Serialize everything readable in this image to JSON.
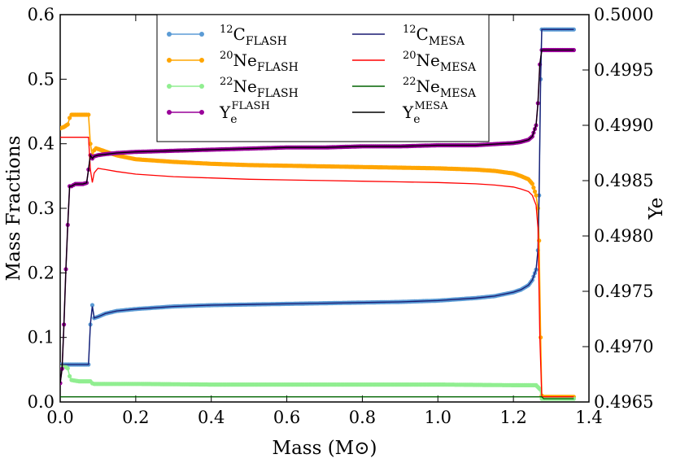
{
  "chart_data": {
    "type": "line",
    "xlabel": "Mass (M⊙)",
    "ylabel": "Mass Fractions",
    "y2label": "Ye",
    "xlim": [
      0.0,
      1.4
    ],
    "ylim": [
      0.0,
      0.6
    ],
    "y2lim": [
      0.4965,
      0.5
    ],
    "x_ticks": [
      0.0,
      0.2,
      0.4,
      0.6,
      0.8,
      1.0,
      1.2,
      1.4
    ],
    "x_tick_labels": [
      "0.0",
      "0.2",
      "0.4",
      "0.6",
      "0.8",
      "1.0",
      "1.2",
      "1.4"
    ],
    "y_ticks": [
      0.0,
      0.1,
      0.2,
      0.3,
      0.4,
      0.5,
      0.6
    ],
    "y_tick_labels": [
      "0.0",
      "0.1",
      "0.2",
      "0.3",
      "0.4",
      "0.5",
      "0.6"
    ],
    "y2_ticks": [
      0.4965,
      0.497,
      0.4975,
      0.498,
      0.4985,
      0.499,
      0.4995,
      0.5
    ],
    "y2_tick_labels": [
      "0.4965",
      "0.4970",
      "0.4975",
      "0.4980",
      "0.4985",
      "0.4990",
      "0.4995",
      "0.5000"
    ],
    "legend_position": "top-center",
    "series": [
      {
        "key": "c12_flash",
        "name": "12C FLASH",
        "legend": {
          "sup": "12",
          "base": "C",
          "sub": "FLASH"
        },
        "color": "#5b9bd5",
        "style": "markers-line",
        "axis": "left",
        "x": [
          0.0,
          0.01,
          0.02,
          0.03,
          0.04,
          0.05,
          0.06,
          0.07,
          0.075,
          0.08,
          0.085,
          0.09,
          0.1,
          0.12,
          0.15,
          0.2,
          0.3,
          0.4,
          0.5,
          0.6,
          0.7,
          0.8,
          0.9,
          1.0,
          1.1,
          1.15,
          1.2,
          1.22,
          1.24,
          1.25,
          1.26,
          1.265,
          1.268,
          1.272,
          1.275,
          1.28,
          1.3,
          1.33,
          1.36
        ],
        "y": [
          0.058,
          0.058,
          0.058,
          0.058,
          0.058,
          0.058,
          0.058,
          0.058,
          0.058,
          0.12,
          0.15,
          0.13,
          0.132,
          0.137,
          0.141,
          0.144,
          0.148,
          0.15,
          0.151,
          0.152,
          0.153,
          0.154,
          0.155,
          0.157,
          0.161,
          0.164,
          0.17,
          0.174,
          0.181,
          0.189,
          0.205,
          0.235,
          0.32,
          0.5,
          0.577,
          0.577,
          0.577,
          0.577,
          0.577
        ]
      },
      {
        "key": "ne20_flash",
        "name": "20Ne FLASH",
        "legend": {
          "sup": "20",
          "base": "Ne",
          "sub": "FLASH"
        },
        "color": "#ffa500",
        "style": "markers-line",
        "axis": "left",
        "x": [
          0.0,
          0.01,
          0.02,
          0.025,
          0.03,
          0.04,
          0.05,
          0.06,
          0.07,
          0.075,
          0.08,
          0.085,
          0.09,
          0.095,
          0.1,
          0.12,
          0.15,
          0.2,
          0.3,
          0.4,
          0.5,
          0.6,
          0.7,
          0.8,
          0.9,
          1.0,
          1.1,
          1.15,
          1.2,
          1.22,
          1.24,
          1.25,
          1.26,
          1.265,
          1.268,
          1.272,
          1.275,
          1.28,
          1.3,
          1.33,
          1.36
        ],
        "y": [
          0.424,
          0.426,
          0.43,
          0.44,
          0.445,
          0.445,
          0.445,
          0.445,
          0.445,
          0.445,
          0.4,
          0.382,
          0.39,
          0.393,
          0.392,
          0.388,
          0.382,
          0.376,
          0.372,
          0.369,
          0.367,
          0.366,
          0.365,
          0.364,
          0.363,
          0.362,
          0.36,
          0.358,
          0.354,
          0.35,
          0.345,
          0.338,
          0.32,
          0.3,
          0.25,
          0.1,
          0.01,
          0.008,
          0.008,
          0.008,
          0.008
        ]
      },
      {
        "key": "ne22_flash",
        "name": "22Ne FLASH",
        "legend": {
          "sup": "22",
          "base": "Ne",
          "sub": "FLASH"
        },
        "color": "#90ee90",
        "style": "markers-line",
        "axis": "left",
        "x": [
          0.0,
          0.01,
          0.02,
          0.025,
          0.03,
          0.04,
          0.05,
          0.06,
          0.07,
          0.08,
          0.085,
          0.09,
          0.1,
          0.2,
          0.4,
          0.6,
          0.8,
          1.0,
          1.2,
          1.26,
          1.27,
          1.275,
          1.28,
          1.3,
          1.36
        ],
        "y": [
          0.056,
          0.056,
          0.052,
          0.04,
          0.034,
          0.033,
          0.032,
          0.032,
          0.032,
          0.032,
          0.029,
          0.028,
          0.028,
          0.028,
          0.027,
          0.027,
          0.027,
          0.027,
          0.026,
          0.026,
          0.02,
          0.005,
          0.005,
          0.005,
          0.005
        ]
      },
      {
        "key": "ye_flash",
        "name": "Ye FLASH",
        "legend": {
          "base": "Y",
          "sub": "e",
          "sup": "FLASH"
        },
        "color": "#990099",
        "style": "markers-line",
        "axis": "right",
        "x": [
          0.0,
          0.005,
          0.01,
          0.015,
          0.02,
          0.025,
          0.03,
          0.035,
          0.04,
          0.05,
          0.06,
          0.07,
          0.075,
          0.08,
          0.085,
          0.09,
          0.1,
          0.12,
          0.15,
          0.2,
          0.3,
          0.4,
          0.5,
          0.6,
          0.7,
          0.8,
          0.9,
          1.0,
          1.1,
          1.15,
          1.2,
          1.22,
          1.24,
          1.25,
          1.26,
          1.265,
          1.27,
          1.275,
          1.28,
          1.3,
          1.33,
          1.36
        ],
        "y": [
          0.49667,
          0.4968,
          0.4972,
          0.4977,
          0.4981,
          0.49845,
          0.49845,
          0.49846,
          0.49847,
          0.49847,
          0.49847,
          0.49848,
          0.4986,
          0.49873,
          0.4987,
          0.49872,
          0.49873,
          0.49874,
          0.49875,
          0.49876,
          0.49877,
          0.49878,
          0.49879,
          0.4988,
          0.4988,
          0.49881,
          0.49881,
          0.49882,
          0.49882,
          0.49883,
          0.49884,
          0.49885,
          0.49887,
          0.4989,
          0.499,
          0.4992,
          0.49955,
          0.49968,
          0.49968,
          0.49968,
          0.49968,
          0.49968
        ]
      },
      {
        "key": "c12_mesa",
        "name": "12C MESA",
        "legend": {
          "sup": "12",
          "base": "C",
          "sub": "MESA"
        },
        "color": "#191970",
        "style": "line",
        "axis": "left",
        "x": [
          0.0,
          0.07,
          0.075,
          0.08,
          0.085,
          0.09,
          0.1,
          0.12,
          0.15,
          0.2,
          0.3,
          0.4,
          0.5,
          0.6,
          0.7,
          0.8,
          0.9,
          1.0,
          1.1,
          1.15,
          1.2,
          1.22,
          1.24,
          1.25,
          1.26,
          1.265,
          1.268,
          1.272,
          1.275,
          1.28,
          1.3,
          1.33,
          1.36
        ],
        "y": [
          0.058,
          0.058,
          0.058,
          0.12,
          0.148,
          0.13,
          0.132,
          0.137,
          0.141,
          0.144,
          0.148,
          0.15,
          0.151,
          0.152,
          0.153,
          0.154,
          0.155,
          0.157,
          0.161,
          0.164,
          0.17,
          0.174,
          0.181,
          0.189,
          0.205,
          0.235,
          0.32,
          0.5,
          0.577,
          0.577,
          0.577,
          0.577,
          0.577
        ]
      },
      {
        "key": "ne20_mesa",
        "name": "20Ne MESA",
        "legend": {
          "sup": "20",
          "base": "Ne",
          "sub": "MESA"
        },
        "color": "#ff0000",
        "style": "line",
        "axis": "left",
        "x": [
          0.0,
          0.07,
          0.075,
          0.08,
          0.085,
          0.09,
          0.1,
          0.12,
          0.15,
          0.2,
          0.3,
          0.4,
          0.5,
          0.6,
          0.7,
          0.8,
          0.9,
          1.0,
          1.1,
          1.15,
          1.2,
          1.22,
          1.24,
          1.25,
          1.26,
          1.265,
          1.27,
          1.275,
          1.28,
          1.3,
          1.36
        ],
        "y": [
          0.41,
          0.41,
          0.41,
          0.36,
          0.34,
          0.355,
          0.362,
          0.36,
          0.357,
          0.353,
          0.349,
          0.347,
          0.345,
          0.344,
          0.343,
          0.342,
          0.341,
          0.34,
          0.338,
          0.336,
          0.333,
          0.33,
          0.326,
          0.32,
          0.305,
          0.27,
          0.1,
          0.008,
          0.008,
          0.008,
          0.008
        ]
      },
      {
        "key": "ne22_mesa",
        "name": "22Ne MESA",
        "legend": {
          "sup": "22",
          "base": "Ne",
          "sub": "MESA"
        },
        "color": "#006400",
        "style": "line",
        "axis": "left",
        "x": [
          0.0,
          1.275,
          1.28,
          1.36
        ],
        "y": [
          0.008,
          0.008,
          0.005,
          0.005
        ]
      },
      {
        "key": "ye_mesa",
        "name": "Ye MESA",
        "legend": {
          "base": "Y",
          "sub": "e",
          "sup": "MESA"
        },
        "color": "#000000",
        "style": "line",
        "axis": "right",
        "x": [
          0.0,
          0.005,
          0.01,
          0.015,
          0.02,
          0.025,
          0.03,
          0.04,
          0.05,
          0.06,
          0.07,
          0.075,
          0.08,
          0.085,
          0.09,
          0.1,
          0.15,
          0.2,
          0.3,
          0.4,
          0.5,
          0.6,
          0.7,
          0.8,
          0.9,
          1.0,
          1.1,
          1.15,
          1.2,
          1.22,
          1.24,
          1.25,
          1.26,
          1.265,
          1.27,
          1.275,
          1.28,
          1.3,
          1.33,
          1.36
        ],
        "y": [
          0.49667,
          0.4968,
          0.4972,
          0.4977,
          0.4981,
          0.49845,
          0.49845,
          0.49847,
          0.49847,
          0.49847,
          0.49848,
          0.4986,
          0.49873,
          0.4987,
          0.49872,
          0.49873,
          0.49875,
          0.49876,
          0.49877,
          0.49878,
          0.49879,
          0.4988,
          0.4988,
          0.49881,
          0.49881,
          0.49882,
          0.49882,
          0.49883,
          0.49884,
          0.49885,
          0.49887,
          0.4989,
          0.499,
          0.4992,
          0.49955,
          0.49968,
          0.49968,
          0.49968,
          0.49968,
          0.49968
        ]
      }
    ]
  }
}
